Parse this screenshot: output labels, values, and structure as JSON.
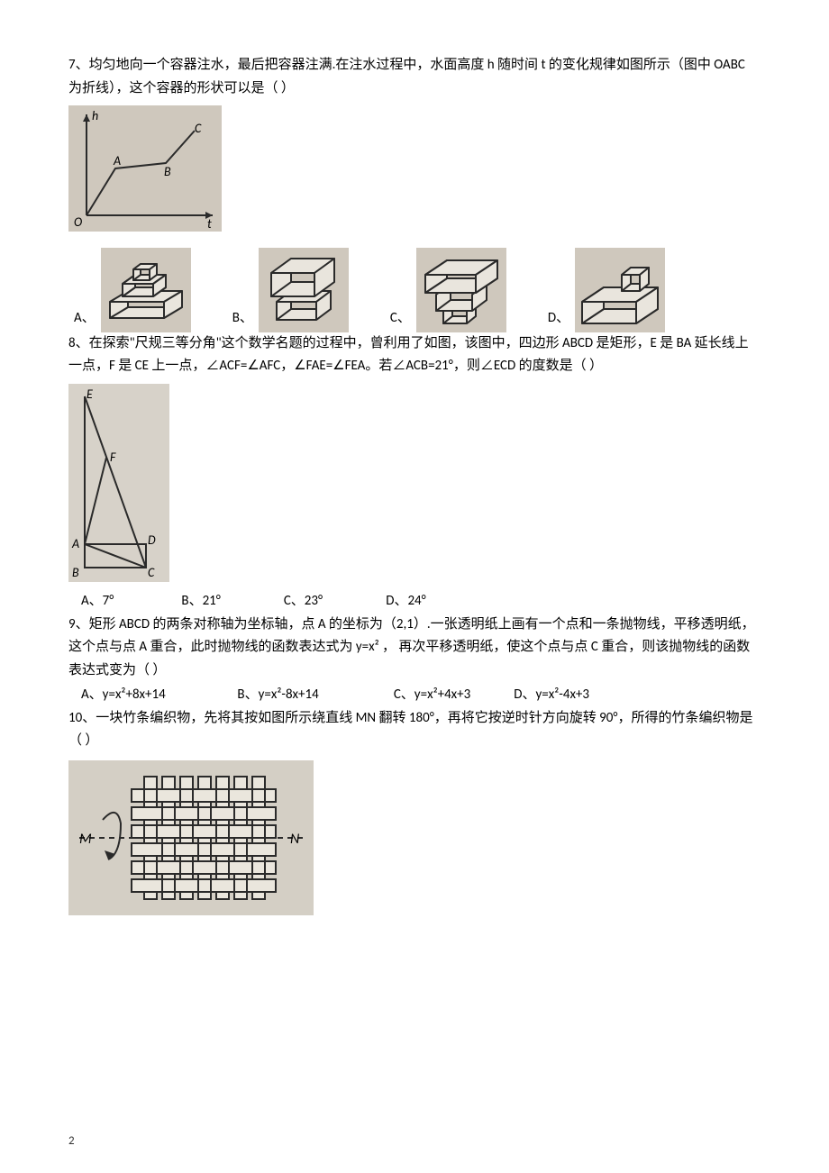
{
  "q7": {
    "text": "7、均匀地向一个容器注水，最后把容器注满.在注水过程中，水面高度 h 随时间 t 的变化规律如图所示（图中 OABC 为折线），这个容器的形状可以是（  ）",
    "graph": {
      "bg": "#cfc8bd",
      "stroke": "#2a2a2a",
      "labels": {
        "h": "h",
        "t": "t",
        "O": "O",
        "A": "A",
        "B": "B",
        "C": "C"
      }
    },
    "opts": {
      "A": "A、",
      "B": "B、",
      "C": "C、",
      "D": "D、"
    }
  },
  "q8": {
    "text": "8、在探索\"尺规三等分角\"这个数学名题的过程中，曾利用了如图，该图中，四边形 ABCD 是矩形，E 是 BA 延长线上一点，F 是 CE 上一点，∠ACF=∠AFC，∠FAE=∠FEA。若∠ACB=21°，则∠ECD 的度数是（  ）",
    "geom": {
      "bg": "#d7d2c9",
      "labels": {
        "E": "E",
        "F": "F",
        "A": "A",
        "B": "B",
        "C": "C",
        "D": "D"
      }
    },
    "opts": {
      "A": "A、7°",
      "B": "B、21°",
      "C": "C、23°",
      "D": "D、24°"
    },
    "opts_gap": {
      "A": 108,
      "B": 110,
      "C": 110,
      "D": 110
    }
  },
  "q9": {
    "text": "9、矩形 ABCD 的两条对称轴为坐标轴，点 A 的坐标为（2,1）.一张透明纸上画有一个点和一条抛物线，平移透明纸，这个点与点 A 重合，此时抛物线的函数表达式为 y=x²  ， 再次平移透明纸，使这个点与点 C 重合，则该抛物线的函数表达式变为（  ）",
    "opts": {
      "A": "A、y=x²+8x+14",
      "B": "B、y=x²-8x+14",
      "C": "C、y=x²+4x+3",
      "D": "D、y=x²-4x+3"
    },
    "opts_gap": {
      "A": 170,
      "B": 170,
      "C": 130,
      "D": 130
    }
  },
  "q10": {
    "text": "10、一块竹条编织物，先将其按如图所示绕直线 MN 翻转 180°，再将它按逆时针方向旋转 90°，所得的竹条编织物是（  ）",
    "weave": {
      "bg": "#d4cfc5",
      "labels": {
        "M": "M",
        "N": "N"
      }
    }
  },
  "page_number": "2",
  "colors": {
    "text": "#000000",
    "img_stroke": "#2a2a2a"
  }
}
